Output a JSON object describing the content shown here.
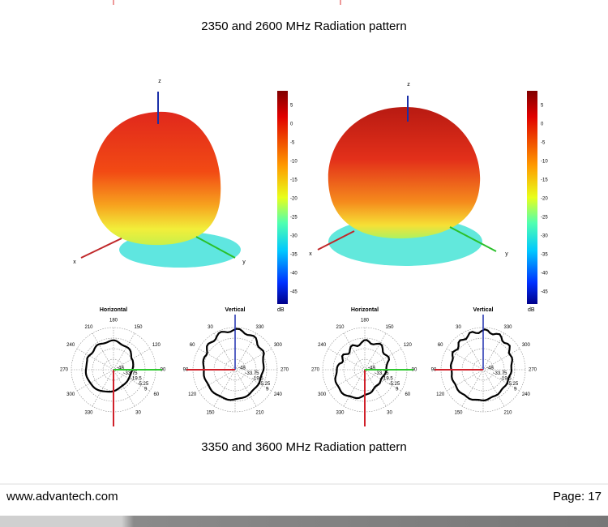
{
  "header": {
    "caption": "2350 and 2600 MHz Radiation pattern"
  },
  "panels": [
    {
      "axes": {
        "x": "x",
        "y": "y",
        "z": "z"
      }
    },
    {
      "axes": {
        "x": "x",
        "y": "y",
        "z": "z"
      }
    }
  ],
  "colorbar": {
    "ticks": [
      "5",
      "0",
      "-5",
      "-10",
      "-15",
      "-20",
      "-25",
      "-30",
      "-35",
      "-40",
      "-45"
    ],
    "unit": "dB"
  },
  "polar": {
    "horizontal": {
      "title": "Horizontal",
      "angles": [
        "180",
        "150",
        "120",
        "90",
        "60",
        "30",
        "330",
        "300",
        "270",
        "240",
        "210"
      ]
    },
    "vertical": {
      "title": "Vertical",
      "angles": [
        "330",
        "300",
        "270",
        "240",
        "210",
        "150",
        "120",
        "90",
        "60",
        "30"
      ]
    },
    "radial": [
      "-48",
      "-33.75",
      "-19.5",
      "-5.25",
      "9"
    ]
  },
  "caption2": "3350 and 3600 MHz Radiation pattern",
  "footer": {
    "site": "www.advantech.com",
    "page": "Page: 17"
  }
}
